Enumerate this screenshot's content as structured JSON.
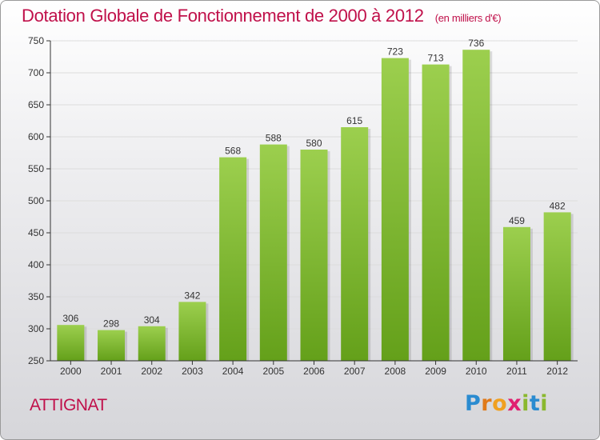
{
  "colors": {
    "title": "#c0104a",
    "bar_light": "#9ccf4e",
    "bar_dark": "#64a01a",
    "grid": "#dcdcdc",
    "axis": "#333333"
  },
  "commune": "ATTIGNAT",
  "logo_text": "Proxiti",
  "chart_data": {
    "type": "bar",
    "title": "Dotation Globale de Fonctionnement de 2000 à 2012",
    "subtitle": "(en milliers d'€)",
    "xlabel": "",
    "ylabel": "",
    "categories": [
      "2000",
      "2001",
      "2002",
      "2003",
      "2004",
      "2005",
      "2006",
      "2007",
      "2008",
      "2009",
      "2010",
      "2011",
      "2012"
    ],
    "values": [
      306,
      298,
      304,
      342,
      568,
      588,
      580,
      615,
      723,
      713,
      736,
      459,
      482
    ],
    "value_labels": [
      "306",
      "298",
      "304",
      "342",
      "568",
      "588",
      "580",
      "615",
      "723",
      "713",
      "736",
      "459",
      "482"
    ],
    "ylim": [
      250,
      750
    ],
    "yticks": [
      250,
      300,
      350,
      400,
      450,
      500,
      550,
      600,
      650,
      700,
      750
    ],
    "ytick_labels": [
      "250",
      "300",
      "350",
      "400",
      "450",
      "500",
      "550",
      "600",
      "650",
      "700",
      "750"
    ],
    "grid": true
  }
}
